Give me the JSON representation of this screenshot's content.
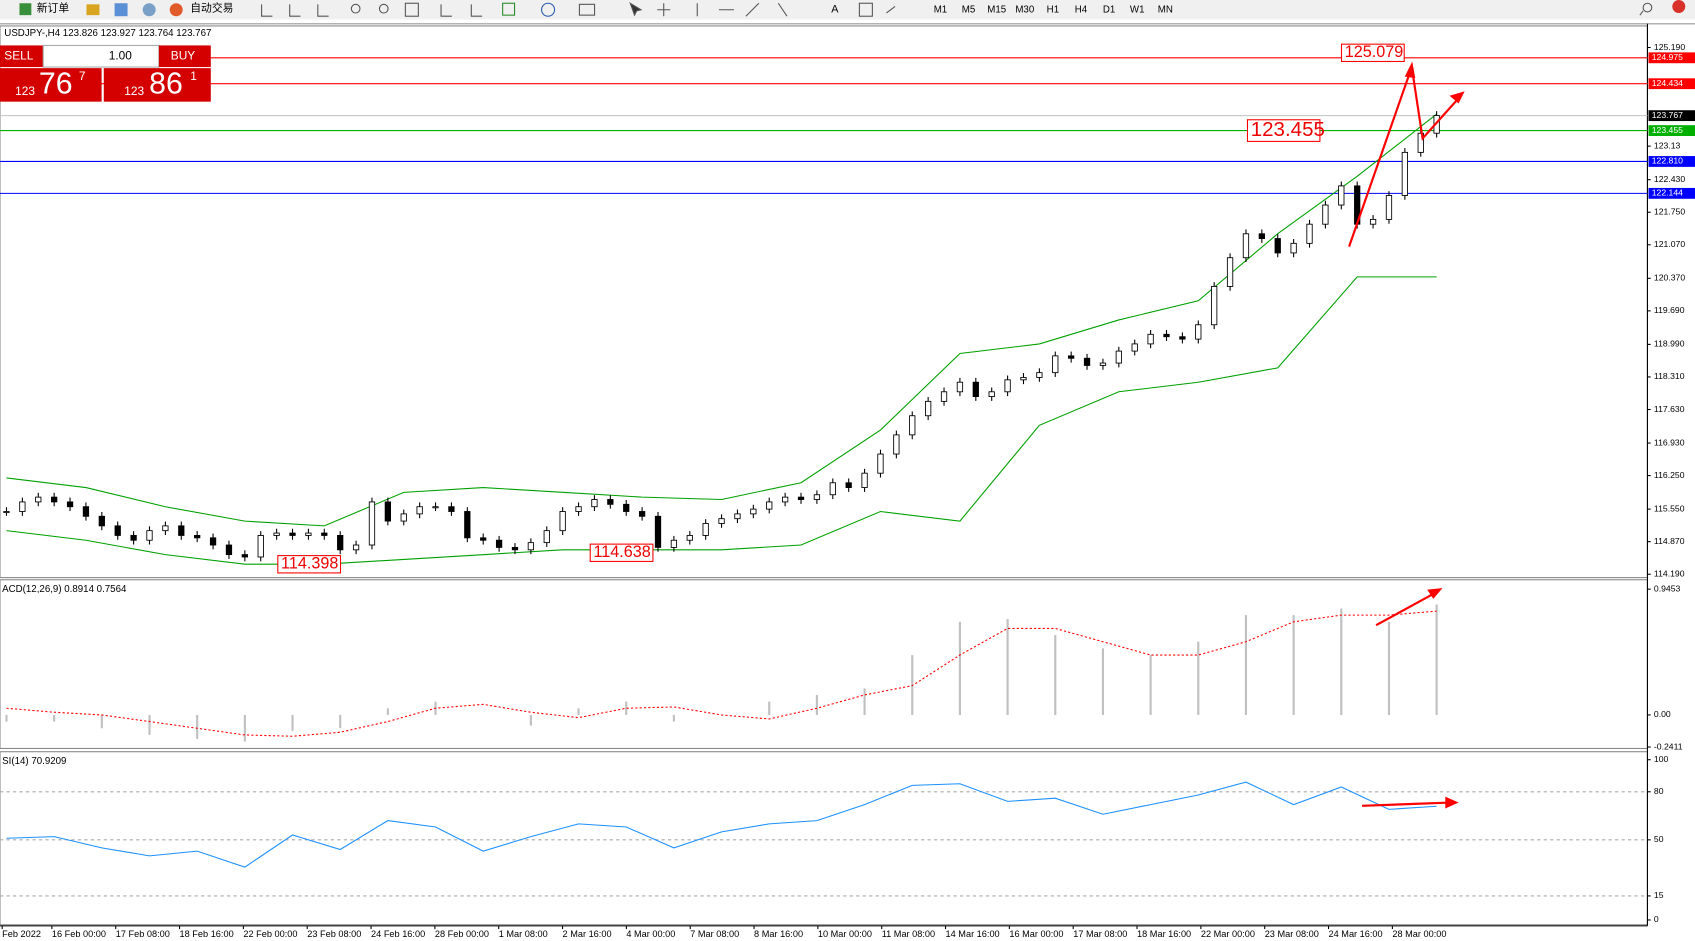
{
  "toolbar": {
    "new_order": "新订单",
    "auto_trading": "自动交易",
    "timeframes": [
      "M1",
      "M5",
      "M15",
      "M30",
      "H1",
      "H4",
      "D1",
      "W1",
      "MN"
    ]
  },
  "trade_panel": {
    "sell": "SELL",
    "buy": "BUY",
    "volume": "1.00",
    "sell_price": {
      "big": "123",
      "main": "76",
      "small": "7"
    },
    "buy_price": {
      "big": "123",
      "main": "86",
      "small": "1"
    }
  },
  "chart": {
    "header": "USDJPY-,H4 123.826 123.927 123.764 123.767",
    "ylim": [
      114.12,
      125.64
    ],
    "yticks": [
      {
        "value": 125.19,
        "label": "125.190"
      },
      123.13,
      {
        "value": 122.43,
        "label": "122.430"
      },
      {
        "value": 121.75,
        "label": "121.750"
      },
      {
        "value": 121.07,
        "label": "121.070"
      },
      {
        "value": 120.37,
        "label": "120.370"
      },
      {
        "value": 119.69,
        "label": "119.690"
      },
      {
        "value": 118.99,
        "label": "118.990"
      },
      {
        "value": 118.31,
        "label": "118.310"
      },
      {
        "value": 117.63,
        "label": "117.630"
      },
      {
        "value": 116.93,
        "label": "116.930"
      },
      {
        "value": 116.25,
        "label": "116.250"
      },
      {
        "value": 115.55,
        "label": "115.550"
      },
      {
        "value": 114.87,
        "label": "114.870"
      },
      {
        "value": 114.19,
        "label": "114.190"
      }
    ],
    "levels": [
      {
        "value": 124.975,
        "color": "#ff0000"
      },
      {
        "value": 124.434,
        "color": "#ff0000"
      },
      {
        "value": 123.767,
        "color": "#c0c0c0",
        "box": "#000000"
      },
      {
        "value": 123.455,
        "color": "#00b000"
      },
      {
        "value": 122.81,
        "label": "122.810",
        "color": "#0000ff"
      },
      {
        "value": 122.144,
        "color": "#0000ff"
      }
    ],
    "annotations": [
      125.079,
      123.455,
      114.398,
      114.638
    ],
    "closes": [
      115.5,
      115.7,
      115.8,
      115.7,
      115.6,
      115.4,
      115.2,
      115.0,
      114.9,
      115.1,
      115.2,
      115.0,
      114.95,
      114.8,
      114.6,
      114.55,
      115.0,
      115.05,
      115.0,
      115.05,
      115.0,
      114.7,
      114.8,
      115.7,
      115.3,
      115.45,
      115.6,
      115.6,
      115.5,
      114.95,
      114.9,
      114.75,
      114.7,
      114.85,
      115.1,
      115.5,
      115.6,
      115.75,
      115.65,
      115.5,
      115.4,
      114.75,
      114.9,
      115.0,
      115.25,
      115.35,
      115.45,
      115.55,
      115.7,
      115.8,
      115.75,
      115.85,
      116.1,
      116.0,
      116.3,
      116.7,
      117.1,
      117.5,
      117.8,
      118.0,
      118.2,
      117.9,
      118.0,
      118.25,
      118.3,
      118.4,
      118.75,
      118.7,
      118.55,
      118.6,
      118.85,
      119.0,
      119.2,
      119.15,
      119.1,
      119.4,
      120.2,
      120.8,
      121.3,
      121.2,
      120.9,
      121.1,
      121.5,
      121.9,
      122.3,
      121.5,
      121.6,
      122.1,
      123.0,
      123.4,
      123.77
    ],
    "band_upper": [
      116.2,
      116.0,
      115.6,
      115.3,
      115.2,
      115.9,
      116.0,
      115.9,
      115.8,
      115.75,
      116.1,
      117.2,
      118.8,
      119.0,
      119.5,
      119.9,
      121.3,
      122.5,
      123.8
    ],
    "band_lower": [
      115.1,
      114.9,
      114.6,
      114.4,
      114.4,
      114.5,
      114.6,
      114.7,
      114.7,
      114.7,
      114.8,
      115.5,
      115.3,
      117.3,
      118.0,
      118.2,
      118.5,
      120.4,
      120.4
    ],
    "color": "#00a000"
  },
  "macd": {
    "header": "ACD(12,26,9) 0.8914 0.7564",
    "ylim": [
      -0.252,
      1.016
    ],
    "yticks": [
      0.9453,
      {
        "value": 0,
        "label": "0.00"
      },
      -0.2411
    ],
    "histogram": [
      -0.05,
      -0.05,
      -0.1,
      -0.15,
      -0.18,
      -0.2,
      -0.12,
      -0.1,
      0.05,
      0.1,
      0.0,
      -0.08,
      0.05,
      0.1,
      -0.05,
      0.0,
      0.1,
      0.15,
      0.2,
      0.45,
      0.7,
      0.72,
      0.6,
      0.5,
      0.45,
      0.55,
      0.75,
      0.75,
      0.8,
      0.7,
      0.83
    ],
    "signal": [
      0.05,
      0.02,
      0.0,
      -0.05,
      -0.1,
      -0.15,
      -0.16,
      -0.13,
      -0.05,
      0.05,
      0.08,
      0.02,
      -0.02,
      0.05,
      0.06,
      0.0,
      -0.03,
      0.05,
      0.15,
      0.22,
      0.45,
      0.65,
      0.65,
      0.55,
      0.45,
      0.45,
      0.55,
      0.7,
      0.75,
      0.75,
      0.78
    ],
    "color": "#c0c0c0",
    "signal_color": "#ff0000"
  },
  "rsi": {
    "header": "SI(14) 70.9209",
    "ylim": [
      -3,
      105
    ],
    "yticks": [
      100,
      80,
      50,
      15,
      0
    ],
    "grid": true,
    "values": [
      51,
      52,
      45,
      40,
      43,
      33,
      53,
      44,
      62,
      58,
      43,
      52,
      60,
      58,
      45,
      55,
      60,
      62,
      72,
      84,
      85,
      74,
      76,
      66,
      72,
      78,
      86,
      72,
      83,
      69,
      71
    ],
    "color": "#1e90ff"
  },
  "x_labels": [
    "Feb 2022",
    "16 Feb 00:00",
    "17 Feb 08:00",
    "18 Feb 16:00",
    "22 Feb 00:00",
    "23 Feb 08:00",
    "24 Feb 16:00",
    "28 Feb 00:00",
    "1 Mar 08:00",
    "2 Mar 16:00",
    "4 Mar 00:00",
    "7 Mar 08:00",
    "8 Mar 16:00",
    "10 Mar 00:00",
    "11 Mar 08:00",
    "14 Mar 16:00",
    "16 Mar 00:00",
    "17 Mar 08:00",
    "18 Mar 16:00",
    "22 Mar 00:00",
    "23 Mar 08:00",
    "24 Mar 16:00",
    "28 Mar 00:00"
  ]
}
